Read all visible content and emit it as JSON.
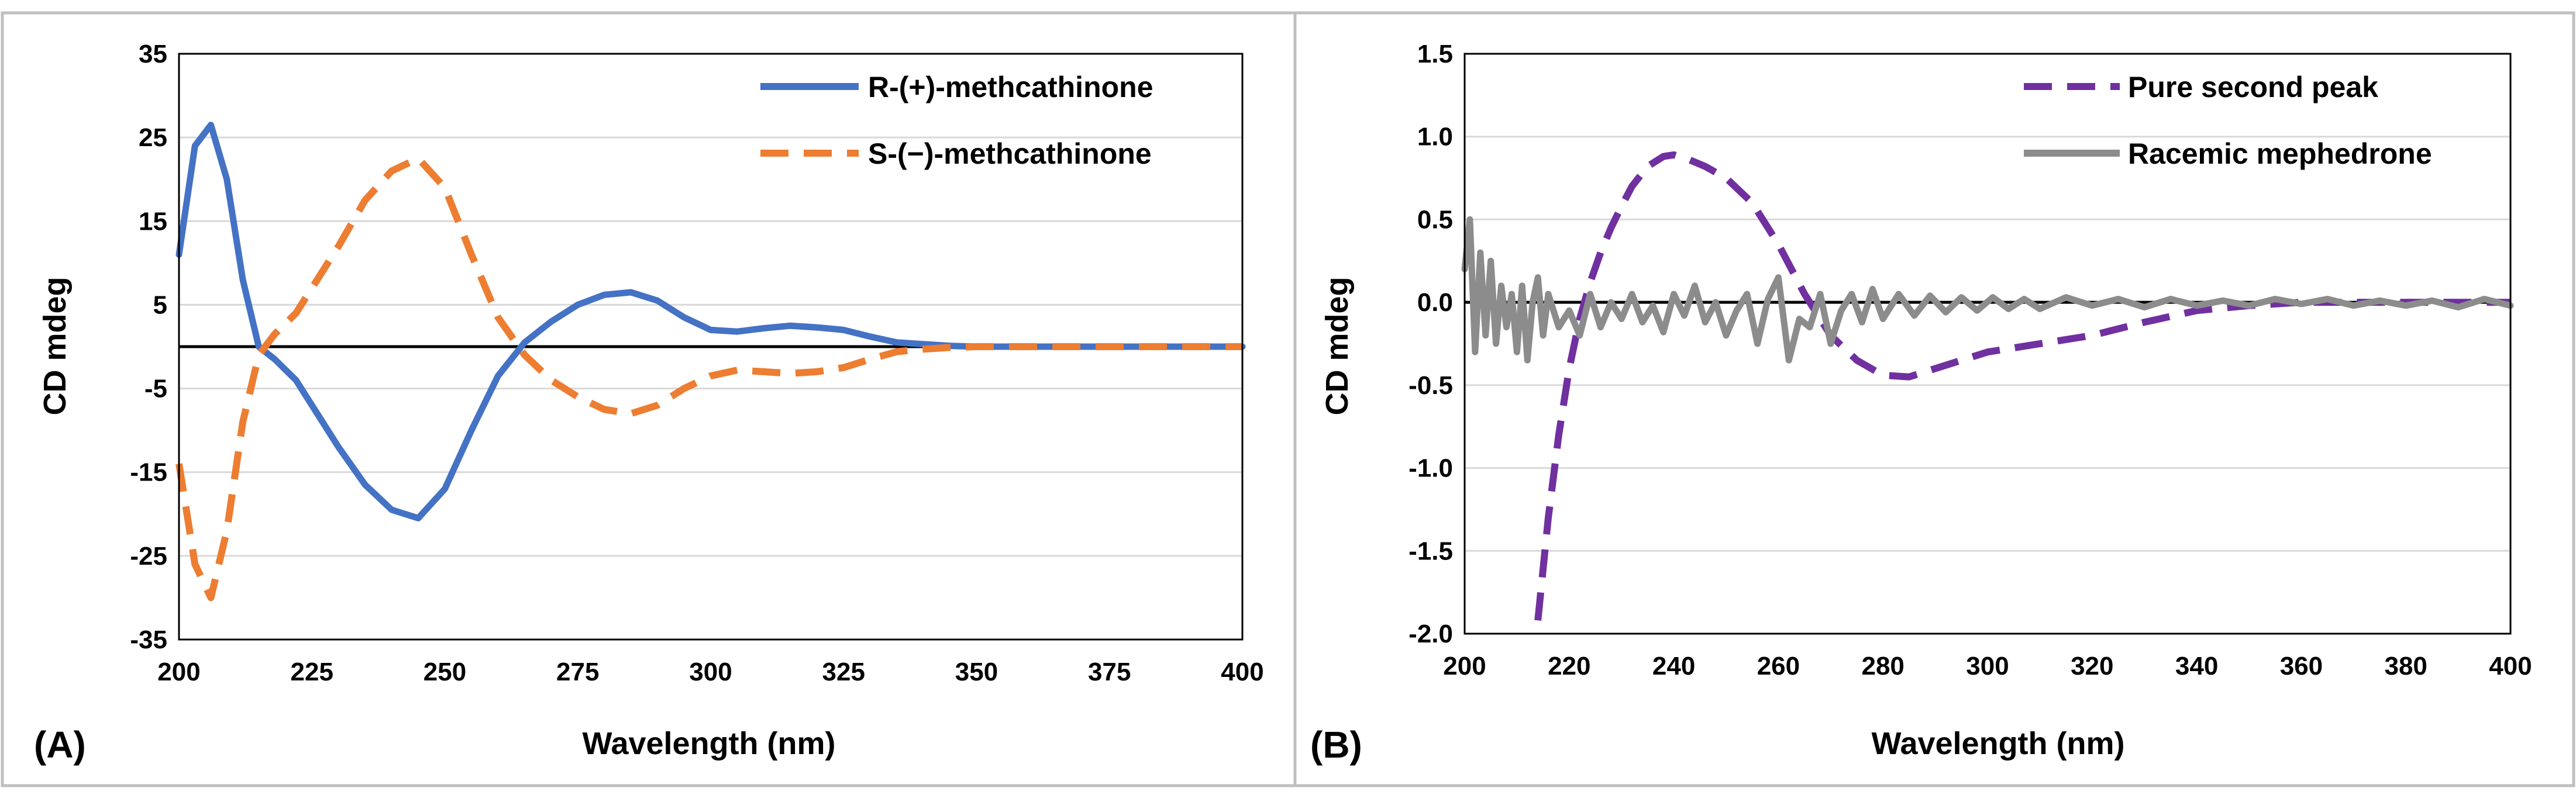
{
  "chart_data": [
    {
      "panel_label": "(A)",
      "type": "line",
      "xlabel": "Wavelength (nm)",
      "ylabel": "CD mdeg",
      "xlim": [
        200,
        400
      ],
      "ylim": [
        -35,
        35
      ],
      "xticks": [
        "200",
        "225",
        "250",
        "275",
        "300",
        "325",
        "350",
        "375",
        "400"
      ],
      "yticks": [
        "35",
        "25",
        "15",
        "5",
        "-5",
        "-15",
        "-25",
        "-35"
      ],
      "legend_position": "top-right",
      "zero_line": true,
      "series": [
        {
          "name": "R-(+)-methcathinone",
          "color": "#4472C4",
          "dash": "solid",
          "x": [
            200,
            203,
            206,
            209,
            212,
            215,
            218,
            222,
            226,
            230,
            235,
            240,
            245,
            250,
            255,
            260,
            265,
            270,
            275,
            280,
            285,
            290,
            295,
            300,
            305,
            310,
            315,
            320,
            325,
            330,
            335,
            340,
            345,
            350,
            360,
            375,
            400
          ],
          "y": [
            11,
            24,
            26.5,
            20,
            8,
            0,
            -1.5,
            -4,
            -8,
            -12,
            -16.5,
            -19.5,
            -20.5,
            -17,
            -10,
            -3.5,
            0.5,
            3,
            5,
            6.2,
            6.5,
            5.5,
            3.5,
            2,
            1.8,
            2.2,
            2.5,
            2.3,
            2,
            1.2,
            0.5,
            0.3,
            0.1,
            0,
            0,
            0,
            0
          ]
        },
        {
          "name": "S-(−)-methcathinone",
          "color": "#ED7D31",
          "dash": "dashed",
          "x": [
            200,
            203,
            206,
            209,
            212,
            215,
            218,
            222,
            226,
            230,
            235,
            240,
            245,
            250,
            255,
            260,
            265,
            270,
            275,
            280,
            285,
            290,
            295,
            300,
            305,
            310,
            315,
            320,
            325,
            330,
            335,
            340,
            345,
            350,
            360,
            375,
            400
          ],
          "y": [
            -14,
            -26,
            -30,
            -22,
            -9,
            -1,
            1.5,
            4,
            8,
            12,
            17.5,
            21,
            22.5,
            19,
            11,
            3.5,
            -1,
            -4,
            -6,
            -7.5,
            -8,
            -7,
            -5,
            -3.5,
            -2.8,
            -3,
            -3.2,
            -3,
            -2.5,
            -1.5,
            -0.6,
            -0.3,
            -0.1,
            0,
            0,
            0,
            0
          ]
        }
      ]
    },
    {
      "panel_label": "(B)",
      "type": "line",
      "xlabel": "Wavelength (nm)",
      "ylabel": "CD mdeg",
      "xlim": [
        200,
        400
      ],
      "ylim": [
        -2.0,
        1.5
      ],
      "xticks": [
        "200",
        "220",
        "240",
        "260",
        "280",
        "300",
        "320",
        "340",
        "360",
        "380",
        "400"
      ],
      "yticks": [
        "1.5",
        "1.0",
        "0.5",
        "0.0",
        "-0.5",
        "-1.0",
        "-1.5",
        "-2.0"
      ],
      "legend_position": "top-right",
      "zero_line": true,
      "series": [
        {
          "name": "Pure second peak",
          "color": "#7030A0",
          "dash": "dashed",
          "x": [
            214,
            216,
            218,
            220,
            222,
            224,
            226,
            228,
            230,
            232,
            235,
            238,
            240,
            243,
            246,
            250,
            255,
            260,
            265,
            270,
            275,
            280,
            285,
            290,
            295,
            300,
            310,
            320,
            330,
            340,
            350,
            360,
            370,
            380,
            390,
            400
          ],
          "y": [
            -1.92,
            -1.3,
            -0.8,
            -0.4,
            -0.1,
            0.12,
            0.3,
            0.45,
            0.58,
            0.7,
            0.82,
            0.88,
            0.89,
            0.86,
            0.82,
            0.75,
            0.6,
            0.35,
            0.05,
            -0.2,
            -0.35,
            -0.44,
            -0.45,
            -0.4,
            -0.35,
            -0.3,
            -0.25,
            -0.2,
            -0.12,
            -0.05,
            -0.02,
            0,
            0,
            0,
            0,
            0
          ]
        },
        {
          "name": "Racemic mephedrone",
          "color": "#8C8C8C",
          "dash": "solid",
          "x": [
            200,
            201,
            202,
            203,
            204,
            205,
            206,
            207,
            208,
            209,
            210,
            211,
            212,
            213,
            214,
            215,
            216,
            218,
            220,
            222,
            224,
            226,
            228,
            230,
            232,
            234,
            236,
            238,
            240,
            242,
            244,
            246,
            248,
            250,
            252,
            254,
            256,
            258,
            260,
            262,
            264,
            266,
            268,
            270,
            272,
            274,
            276,
            278,
            280,
            283,
            286,
            289,
            292,
            295,
            298,
            301,
            304,
            307,
            310,
            315,
            320,
            325,
            330,
            335,
            340,
            345,
            350,
            355,
            360,
            365,
            370,
            375,
            380,
            385,
            390,
            395,
            400
          ],
          "y": [
            0.2,
            0.5,
            -0.3,
            0.3,
            -0.2,
            0.25,
            -0.25,
            0.1,
            -0.15,
            0.05,
            -0.3,
            0.1,
            -0.35,
            0.0,
            0.15,
            -0.2,
            0.05,
            -0.15,
            -0.05,
            -0.2,
            0.05,
            -0.15,
            0.0,
            -0.1,
            0.05,
            -0.12,
            -0.02,
            -0.18,
            0.05,
            -0.08,
            0.1,
            -0.12,
            0.0,
            -0.2,
            -0.05,
            0.05,
            -0.25,
            0.02,
            0.15,
            -0.35,
            -0.1,
            -0.15,
            0.05,
            -0.25,
            -0.05,
            0.05,
            -0.12,
            0.08,
            -0.1,
            0.05,
            -0.08,
            0.04,
            -0.06,
            0.03,
            -0.05,
            0.03,
            -0.04,
            0.02,
            -0.04,
            0.03,
            -0.02,
            0.02,
            -0.03,
            0.02,
            -0.02,
            0.01,
            -0.02,
            0.02,
            -0.01,
            0.02,
            -0.02,
            0.01,
            -0.02,
            0.01,
            -0.03,
            0.02,
            -0.02
          ]
        }
      ]
    }
  ]
}
